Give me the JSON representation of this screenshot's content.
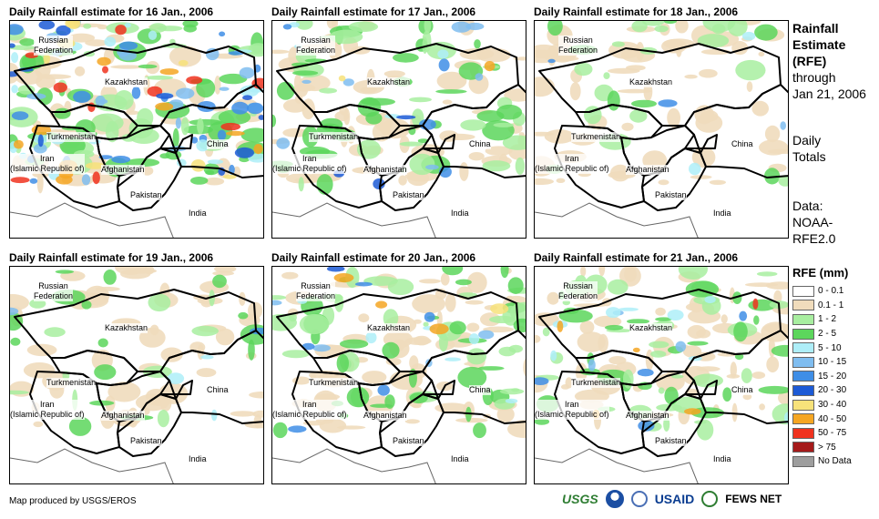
{
  "panels": [
    {
      "title": "Daily Rainfall estimate for 16 Jan., 2006",
      "pattern": "heavy"
    },
    {
      "title": "Daily Rainfall estimate for 17 Jan., 2006",
      "pattern": "moderate"
    },
    {
      "title": "Daily Rainfall estimate for 18 Jan., 2006",
      "pattern": "light"
    },
    {
      "title": "Daily Rainfall estimate for 19 Jan., 2006",
      "pattern": "light"
    },
    {
      "title": "Daily Rainfall estimate for 20 Jan., 2006",
      "pattern": "moderate"
    },
    {
      "title": "Daily Rainfall estimate for 21 Jan., 2006",
      "pattern": "moderate"
    }
  ],
  "map_labels": {
    "russia": "Russian\nFederation",
    "kazakhstan": "Kazakhstan",
    "turkmenistan": "Turkmenistan",
    "iran": "Iran\n(Islamic Republic of)",
    "afghanistan": "Afghanistan",
    "pakistan": "Pakistan",
    "china": "China",
    "india": "India"
  },
  "sidebar": {
    "title_line1": "Rainfall",
    "title_line2": "Estimate",
    "title_line3": "(RFE)",
    "through": "through",
    "date": "Jan 21, 2006",
    "daily": "Daily",
    "totals": "Totals",
    "data_label": "Data:",
    "source1": "NOAA-",
    "source2": "RFE2.0"
  },
  "legend": {
    "title": "RFE (mm)",
    "items": [
      {
        "label": "0 - 0.1",
        "color": "#ffffff"
      },
      {
        "label": "0.1 - 1",
        "color": "#f0dcbc"
      },
      {
        "label": "1 - 2",
        "color": "#a8eea0"
      },
      {
        "label": "2 - 5",
        "color": "#5cd65c"
      },
      {
        "label": "5 - 10",
        "color": "#aeeef8"
      },
      {
        "label": "10 - 15",
        "color": "#7fbdf0"
      },
      {
        "label": "15 - 20",
        "color": "#3f8ee6"
      },
      {
        "label": "20 - 30",
        "color": "#1c5ad6"
      },
      {
        "label": "30 - 40",
        "color": "#f7e27a"
      },
      {
        "label": "40 - 50",
        "color": "#f5a623"
      },
      {
        "label": "50 - 75",
        "color": "#f0321e"
      },
      {
        "label": "> 75",
        "color": "#a51a1a"
      },
      {
        "label": "No Data",
        "color": "#9e9e9e"
      }
    ]
  },
  "footer": {
    "credit": "Map produced by USGS/EROS",
    "logo_usgs": "USGS",
    "logo_usaid": "USAID",
    "logo_fews": "FEWS NET"
  }
}
